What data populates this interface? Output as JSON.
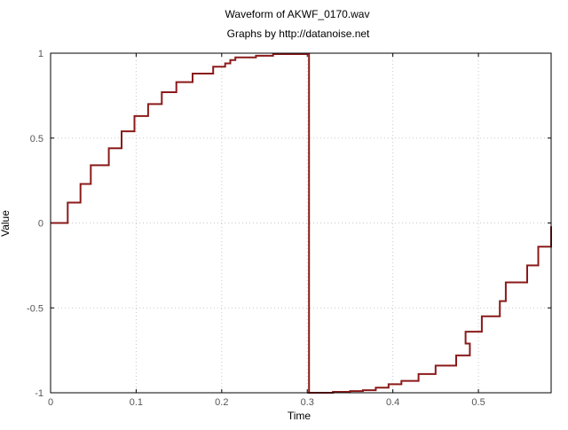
{
  "chart_data": {
    "type": "line",
    "title": "Waveform of AKWF_0170.wav",
    "subtitle": "Graphs by http://datanoise.net",
    "xlabel": "Time",
    "ylabel": "Value",
    "xlim": [
      0,
      0.585
    ],
    "ylim": [
      -1,
      1
    ],
    "x_ticks": [
      {
        "value": 0,
        "label": "0"
      },
      {
        "value": 0.1,
        "label": "0.1"
      },
      {
        "value": 0.2,
        "label": "0.2"
      },
      {
        "value": 0.3,
        "label": "0.3"
      },
      {
        "value": 0.4,
        "label": "0.4"
      },
      {
        "value": 0.5,
        "label": "0.5"
      }
    ],
    "y_ticks": [
      {
        "value": 1,
        "label": "1"
      },
      {
        "value": 0.5,
        "label": "0.5"
      },
      {
        "value": 0,
        "label": "0"
      },
      {
        "value": -0.5,
        "label": "-0.5"
      },
      {
        "value": -1,
        "label": "-1"
      }
    ],
    "grid": true,
    "line_color": "#8b1a1a",
    "series": [
      {
        "step": true,
        "points": [
          [
            0,
            0
          ],
          [
            0.02,
            0.12
          ],
          [
            0.035,
            0.23
          ],
          [
            0.047,
            0.34
          ],
          [
            0.068,
            0.44
          ],
          [
            0.083,
            0.54
          ],
          [
            0.098,
            0.63
          ],
          [
            0.114,
            0.7
          ],
          [
            0.13,
            0.77
          ],
          [
            0.147,
            0.83
          ],
          [
            0.166,
            0.88
          ],
          [
            0.19,
            0.92
          ],
          [
            0.204,
            0.94
          ],
          [
            0.21,
            0.96
          ],
          [
            0.216,
            0.975
          ],
          [
            0.24,
            0.985
          ],
          [
            0.26,
            0.995
          ],
          [
            0.302,
            1.0
          ],
          [
            0.302,
            -1.0
          ],
          [
            0.3,
            -1.0
          ],
          [
            0.33,
            -0.995
          ],
          [
            0.35,
            -0.99
          ],
          [
            0.365,
            -0.985
          ],
          [
            0.38,
            -0.97
          ],
          [
            0.395,
            -0.95
          ],
          [
            0.41,
            -0.93
          ],
          [
            0.43,
            -0.89
          ],
          [
            0.45,
            -0.84
          ],
          [
            0.474,
            -0.78
          ],
          [
            0.49,
            -0.71
          ],
          [
            0.485,
            -0.64
          ],
          [
            0.504,
            -0.55
          ],
          [
            0.525,
            -0.46
          ],
          [
            0.532,
            -0.35
          ],
          [
            0.557,
            -0.25
          ],
          [
            0.57,
            -0.14
          ],
          [
            0.585,
            -0.02
          ]
        ]
      }
    ]
  }
}
